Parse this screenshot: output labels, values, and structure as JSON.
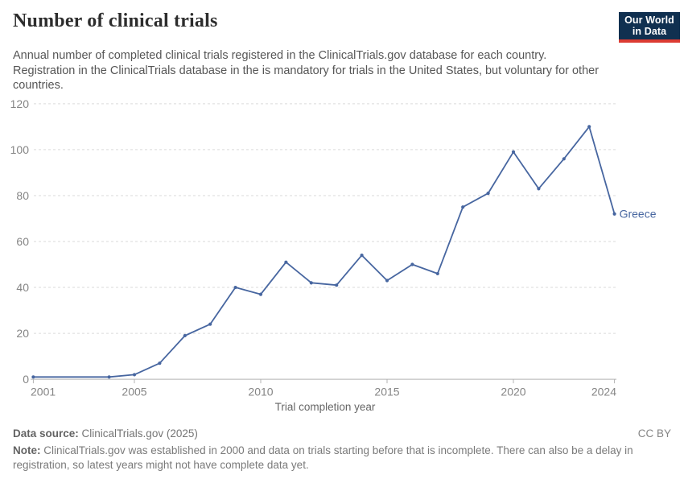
{
  "header": {
    "title": "Number of clinical trials",
    "subtitle": "Annual number of completed clinical trials registered in the ClinicalTrials.gov database for each country. Registration in the ClinicalTrials database in the is mandatory for trials in the United States, but voluntary for other countries.",
    "logo": {
      "line1": "Our World",
      "line2": "in Data",
      "bg_color": "#103050",
      "bar_color": "#dc3b32"
    }
  },
  "chart_data": {
    "type": "line",
    "title": "Number of clinical trials",
    "xlabel": "Trial completion year",
    "ylabel": "",
    "xlim": [
      2001,
      2024
    ],
    "ylim": [
      0,
      120
    ],
    "x_ticks": [
      2001,
      2005,
      2010,
      2015,
      2020,
      2024
    ],
    "y_ticks": [
      0,
      20,
      40,
      60,
      80,
      100,
      120
    ],
    "grid": "horizontal-dashed",
    "legend": "end-of-line-label",
    "series": [
      {
        "name": "Greece",
        "color": "#4766a0",
        "points": [
          [
            2001,
            1
          ],
          [
            2004,
            1
          ],
          [
            2005,
            2
          ],
          [
            2006,
            7
          ],
          [
            2007,
            19
          ],
          [
            2008,
            24
          ],
          [
            2009,
            40
          ],
          [
            2010,
            37
          ],
          [
            2011,
            51
          ],
          [
            2012,
            42
          ],
          [
            2013,
            41
          ],
          [
            2014,
            54
          ],
          [
            2015,
            43
          ],
          [
            2016,
            50
          ],
          [
            2017,
            46
          ],
          [
            2018,
            75
          ],
          [
            2019,
            81
          ],
          [
            2020,
            99
          ],
          [
            2021,
            83
          ],
          [
            2022,
            96
          ],
          [
            2023,
            110
          ],
          [
            2024,
            72
          ]
        ]
      }
    ]
  },
  "footer": {
    "datasource_label": "Data source:",
    "datasource_value": "ClinicalTrials.gov (2025)",
    "license": "CC BY",
    "note_label": "Note:",
    "note_text": "ClinicalTrials.gov was established in 2000 and data on trials starting before that is incomplete. There can also be a delay in registration, so latest years might not have complete data yet."
  },
  "colors": {
    "grid": "#dadada",
    "axis": "#b3b3b3",
    "tick_text": "#858585",
    "title_text": "#2d2d2d"
  }
}
